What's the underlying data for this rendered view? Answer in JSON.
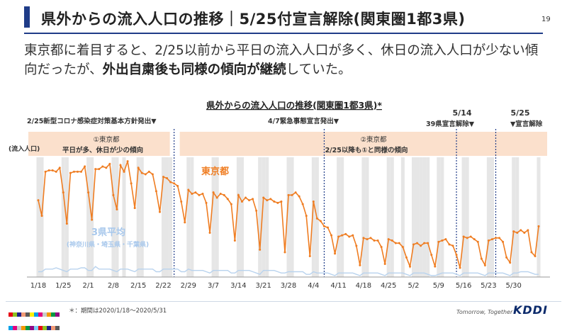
{
  "header": {
    "title": "県外からの流入人口の推移｜5/25付宣言解除(関東圏1都3県)",
    "page_number": "19"
  },
  "lead": {
    "part1": "東京都に着目すると、2/25以前から平日の流入人口が多く、休日の流入人口が少ない傾向だったが、",
    "bold": "外出自粛後も同様の傾向が継続",
    "part2": "していた。"
  },
  "footer": {
    "note": "＊：期間は2020/1/18～2020/5/31",
    "tagline": "Tomorrow, Together",
    "logo": "KDDI"
  },
  "colors": {
    "accent": "#1f3c88",
    "tokyo": "#ef7d22",
    "avg": "#b9d3ee",
    "avg_label": "#a8c8ec",
    "holiday": "#e6e6e6",
    "band": "#fbe0cc",
    "event": "#1f3c88"
  },
  "chart_data": {
    "type": "line",
    "title": "県外からの流入人口の推移(関東圏1都3県)*",
    "ylabel": "(流入人口)",
    "x_start": "2020/1/18",
    "x_end": "2020/5/31",
    "x_ticks": [
      "1/18",
      "1/25",
      "2/1",
      "2/8",
      "2/15",
      "2/22",
      "2/29",
      "3/7",
      "3/14",
      "3/21",
      "3/28",
      "4/4",
      "4/11",
      "4/18",
      "4/25",
      "5/2",
      "5/9",
      "5/16",
      "5/23",
      "5/30"
    ],
    "holiday_shading": "土日祝",
    "events": [
      {
        "date": "2/25",
        "label": "2/25新型コロナ感染症対策基本方針発出▼"
      },
      {
        "date": "4/7",
        "label": "4/7緊急事態宣言発出▼"
      },
      {
        "date": "5/14",
        "label_top": "5/14",
        "label": "39県宣言解除▼"
      },
      {
        "date": "5/25",
        "label_top": "5/25",
        "label": "▼宣言解除"
      }
    ],
    "phase_notes": [
      {
        "line1": "①東京都",
        "line2": "平日が多、休日が少の傾向"
      },
      {
        "line1": "②東京都",
        "line2": "2/25以降も①と同様の傾向"
      }
    ],
    "series": [
      {
        "name": "東京都",
        "values": [
          58,
          46,
          80,
          81,
          81,
          80,
          83,
          64,
          40,
          79,
          80,
          80,
          80,
          84,
          64,
          43,
          82,
          82,
          84,
          83,
          86,
          62,
          51,
          85,
          80,
          88,
          71,
          52,
          83,
          79,
          78,
          80,
          78,
          65,
          49,
          76,
          75,
          72,
          71,
          69,
          57,
          41,
          66,
          63,
          64,
          62,
          63,
          56,
          33,
          64,
          60,
          63,
          62,
          59,
          55,
          27,
          62,
          57,
          60,
          58,
          59,
          50,
          20,
          60,
          58,
          59,
          57,
          56,
          57,
          18,
          62,
          62,
          64,
          61,
          55,
          46,
          15,
          57,
          44,
          42,
          38,
          37,
          31,
          17,
          30,
          31,
          32,
          30,
          31,
          23,
          8,
          29,
          28,
          29,
          27,
          27,
          22,
          9,
          28,
          27,
          25,
          25,
          22,
          14,
          7,
          24,
          25,
          23,
          25,
          25,
          16,
          7,
          26,
          27,
          28,
          24,
          23,
          16,
          6,
          30,
          29,
          30,
          28,
          26,
          13,
          8,
          27,
          28,
          29,
          29,
          26,
          14,
          10,
          34,
          33,
          35,
          33,
          35,
          18,
          15,
          38
        ]
      },
      {
        "name": "3県平均",
        "note": "(神奈川県・埼玉県・千葉県)",
        "values": [
          3,
          3,
          5,
          5,
          5,
          6,
          5,
          4,
          3,
          5,
          5,
          5,
          6,
          6,
          4,
          4,
          7,
          5,
          5,
          5,
          5,
          4,
          3,
          5,
          5,
          5,
          4,
          3,
          5,
          5,
          5,
          5,
          5,
          3,
          3,
          5,
          5,
          5,
          5,
          5,
          3,
          3,
          5,
          4,
          4,
          4,
          4,
          3,
          2,
          4,
          4,
          4,
          4,
          4,
          2,
          2,
          4,
          4,
          4,
          4,
          3,
          2,
          1,
          4,
          4,
          4,
          4,
          3,
          2,
          2,
          3,
          3,
          3,
          3,
          3,
          1,
          1,
          3,
          2,
          2,
          2,
          2,
          1,
          0,
          2,
          2,
          2,
          2,
          2,
          1,
          0,
          2,
          2,
          2,
          2,
          2,
          1,
          0,
          2,
          2,
          2,
          2,
          2,
          1,
          0,
          2,
          2,
          2,
          2,
          1,
          0,
          0,
          1,
          2,
          2,
          2,
          2,
          1,
          0,
          2,
          2,
          2,
          2,
          2,
          1,
          0,
          2,
          2,
          2,
          2,
          2,
          1,
          0,
          2,
          2,
          3,
          3,
          3,
          2,
          1,
          1
        ]
      }
    ],
    "grid": false,
    "legend": "inline labels"
  }
}
